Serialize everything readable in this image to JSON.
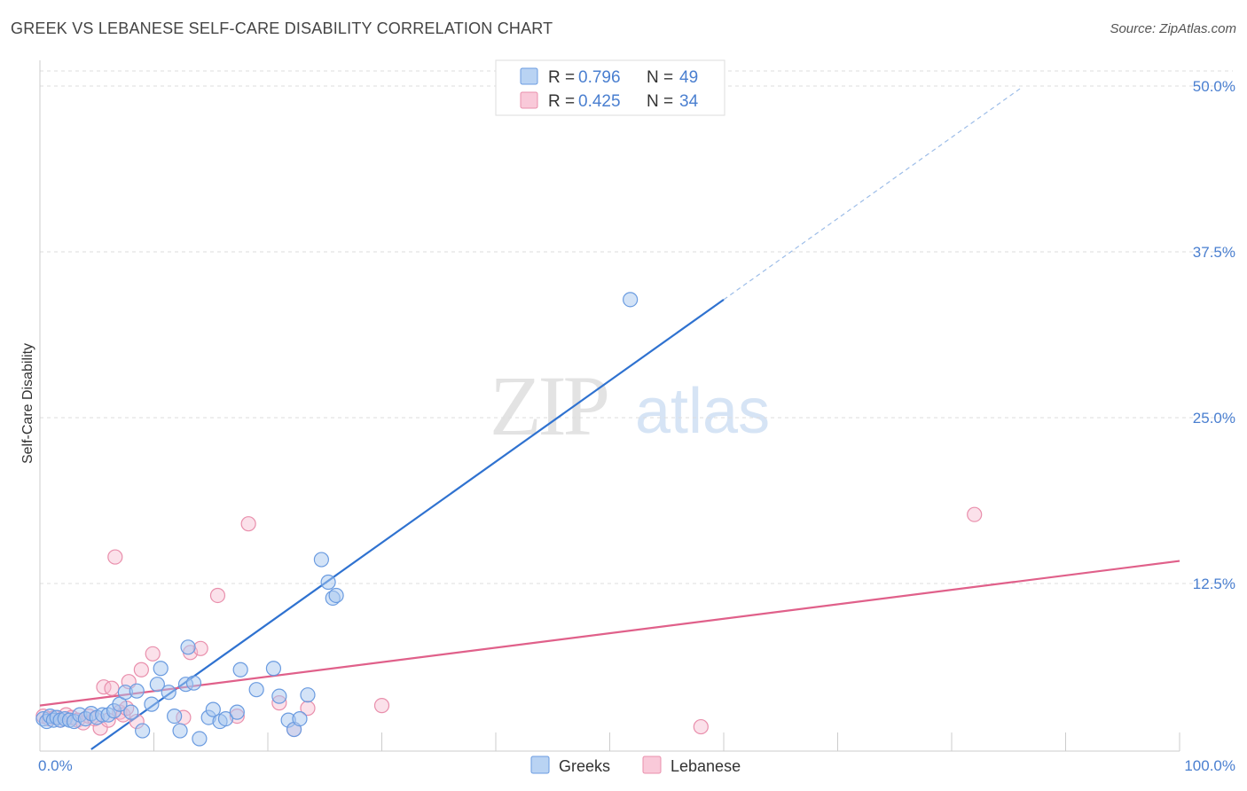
{
  "title": "GREEK VS LEBANESE SELF-CARE DISABILITY CORRELATION CHART",
  "source": "Source: ZipAtlas.com",
  "watermark": {
    "zip": "ZIP",
    "atlas": "atlas"
  },
  "colors": {
    "greeks_fill": "#a8c8f0",
    "greeks_stroke": "#6a9be0",
    "greeks_line": "#2f72d0",
    "lebanese_fill": "#f7bcd0",
    "lebanese_stroke": "#e98fac",
    "lebanese_line": "#e0608a",
    "tick_text": "#4a7fd0"
  },
  "legend": {
    "r_label": "R =",
    "n_label": "N =",
    "entries": [
      {
        "r": "0.796",
        "n": "49"
      },
      {
        "r": "0.425",
        "n": "34"
      }
    ]
  },
  "bottom_legend": [
    "Greeks",
    "Lebanese"
  ],
  "chart_data": {
    "type": "scatter",
    "title": "GREEK VS LEBANESE SELF-CARE DISABILITY CORRELATION CHART",
    "xlabel": "",
    "ylabel": "Self-Care Disability",
    "xlim": [
      0,
      100
    ],
    "ylim": [
      0,
      50
    ],
    "x_tick_labels": [
      "0.0%",
      "100.0%"
    ],
    "y_ticks": [
      12.5,
      25.0,
      37.5,
      50.0
    ],
    "y_tick_labels": [
      "12.5%",
      "25.0%",
      "37.5%",
      "50.0%"
    ],
    "grid": "horizontal dashed",
    "legend_position": "top-center",
    "series": [
      {
        "name": "Greeks",
        "r": 0.796,
        "n": 49,
        "trend": {
          "x0": 4.5,
          "y0": 0.0,
          "x1": 60,
          "y1": 33.9,
          "dash_to_x": 86,
          "dash_to_y": 49.8
        },
        "points": [
          [
            0.3,
            2.3
          ],
          [
            0.6,
            2.1
          ],
          [
            0.9,
            2.5
          ],
          [
            1.2,
            2.2
          ],
          [
            1.5,
            2.4
          ],
          [
            1.8,
            2.2
          ],
          [
            2.2,
            2.3
          ],
          [
            2.6,
            2.2
          ],
          [
            3.0,
            2.1
          ],
          [
            3.5,
            2.6
          ],
          [
            4.0,
            2.3
          ],
          [
            4.5,
            2.7
          ],
          [
            5.0,
            2.4
          ],
          [
            5.5,
            2.6
          ],
          [
            6.0,
            2.6
          ],
          [
            6.5,
            2.9
          ],
          [
            7.0,
            3.4
          ],
          [
            7.5,
            4.3
          ],
          [
            8.0,
            2.8
          ],
          [
            8.5,
            4.4
          ],
          [
            9.0,
            1.4
          ],
          [
            9.8,
            3.4
          ],
          [
            10.3,
            4.9
          ],
          [
            10.6,
            6.1
          ],
          [
            11.3,
            4.3
          ],
          [
            11.8,
            2.5
          ],
          [
            12.3,
            1.4
          ],
          [
            12.8,
            4.9
          ],
          [
            13.0,
            7.7
          ],
          [
            13.5,
            5.0
          ],
          [
            14.0,
            0.8
          ],
          [
            14.8,
            2.4
          ],
          [
            15.2,
            3.0
          ],
          [
            15.8,
            2.1
          ],
          [
            16.3,
            2.3
          ],
          [
            17.3,
            2.8
          ],
          [
            17.6,
            6.0
          ],
          [
            19.0,
            4.5
          ],
          [
            20.5,
            6.1
          ],
          [
            21.0,
            4.0
          ],
          [
            21.8,
            2.2
          ],
          [
            22.3,
            1.5
          ],
          [
            22.8,
            2.3
          ],
          [
            23.5,
            4.1
          ],
          [
            24.7,
            14.3
          ],
          [
            25.3,
            12.6
          ],
          [
            25.7,
            11.4
          ],
          [
            26.0,
            11.6
          ],
          [
            51.8,
            33.9
          ]
        ]
      },
      {
        "name": "Lebanese",
        "r": 0.425,
        "n": 34,
        "trend": {
          "x0": 0.0,
          "y0": 3.3,
          "x1": 100,
          "y1": 14.2
        },
        "points": [
          [
            0.3,
            2.5
          ],
          [
            0.8,
            2.3
          ],
          [
            1.3,
            2.4
          ],
          [
            1.8,
            2.2
          ],
          [
            2.3,
            2.6
          ],
          [
            2.8,
            2.4
          ],
          [
            3.3,
            2.2
          ],
          [
            3.8,
            2.0
          ],
          [
            4.3,
            2.5
          ],
          [
            4.8,
            2.3
          ],
          [
            5.3,
            1.6
          ],
          [
            5.6,
            4.7
          ],
          [
            6.0,
            2.2
          ],
          [
            6.3,
            4.6
          ],
          [
            6.6,
            14.5
          ],
          [
            7.0,
            2.8
          ],
          [
            7.3,
            2.6
          ],
          [
            7.6,
            3.1
          ],
          [
            7.8,
            5.1
          ],
          [
            8.5,
            2.1
          ],
          [
            8.9,
            6.0
          ],
          [
            9.9,
            7.2
          ],
          [
            12.6,
            2.4
          ],
          [
            13.2,
            7.3
          ],
          [
            14.1,
            7.6
          ],
          [
            15.6,
            11.6
          ],
          [
            17.3,
            2.5
          ],
          [
            18.3,
            17.0
          ],
          [
            21.0,
            3.5
          ],
          [
            22.3,
            1.5
          ],
          [
            23.5,
            3.1
          ],
          [
            30.0,
            3.3
          ],
          [
            58.0,
            1.7
          ],
          [
            82.0,
            17.7
          ]
        ]
      }
    ]
  }
}
